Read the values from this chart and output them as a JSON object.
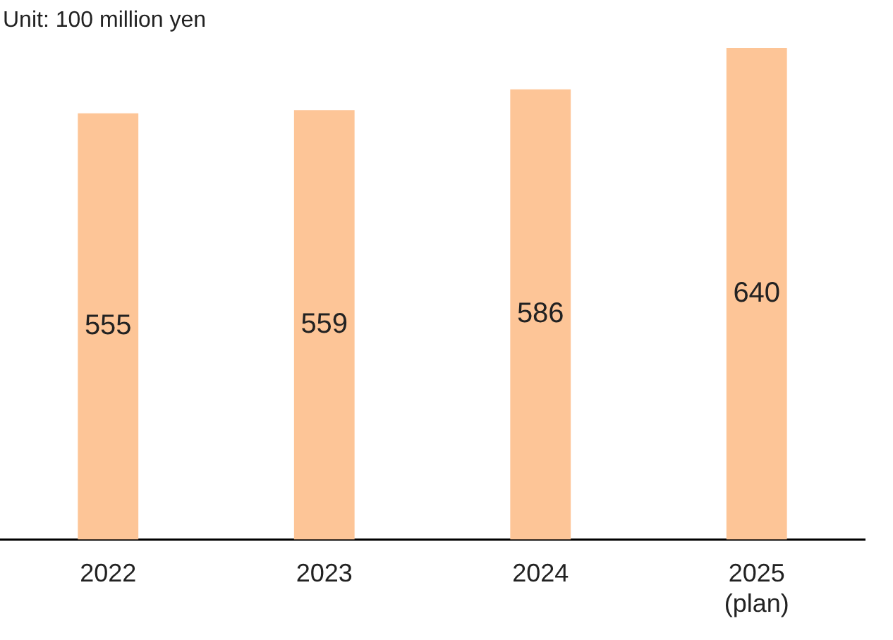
{
  "chart_data": {
    "type": "bar",
    "annotations": [
      "Unit: 100 million yen"
    ],
    "categories": [
      "2022",
      "2023",
      "2024",
      "2025\n(plan)"
    ],
    "values": [
      555,
      559,
      586,
      640
    ],
    "color": "#fdc597",
    "data_labels": true,
    "grid": false,
    "legend": false
  }
}
